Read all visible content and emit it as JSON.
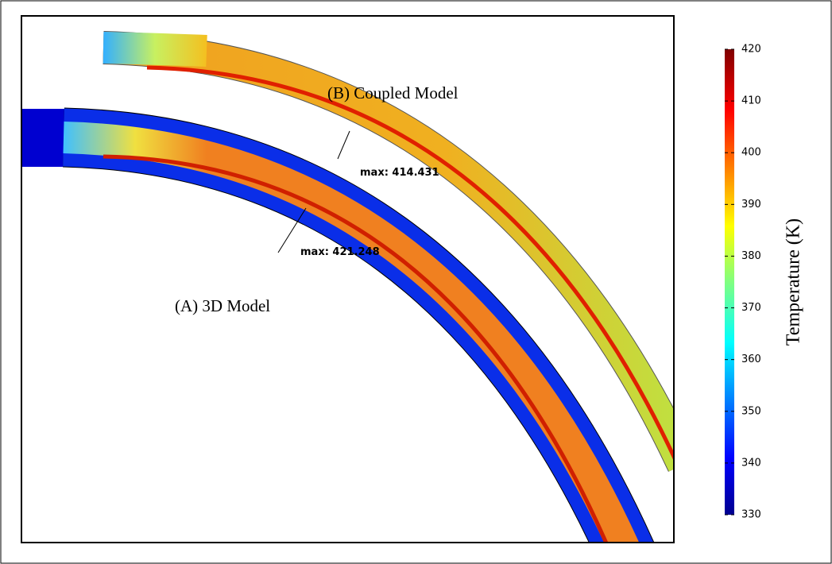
{
  "figure": {
    "labels": {
      "a": "(A) 3D Model",
      "b": "(B) Coupled Model"
    },
    "annotations": {
      "a": "max: 421.248",
      "b": "max: 414.431"
    },
    "colorbar": {
      "title": "Temperature (K)",
      "ticks": [
        330,
        340,
        350,
        360,
        370,
        380,
        390,
        400,
        410,
        420
      ]
    }
  }
}
